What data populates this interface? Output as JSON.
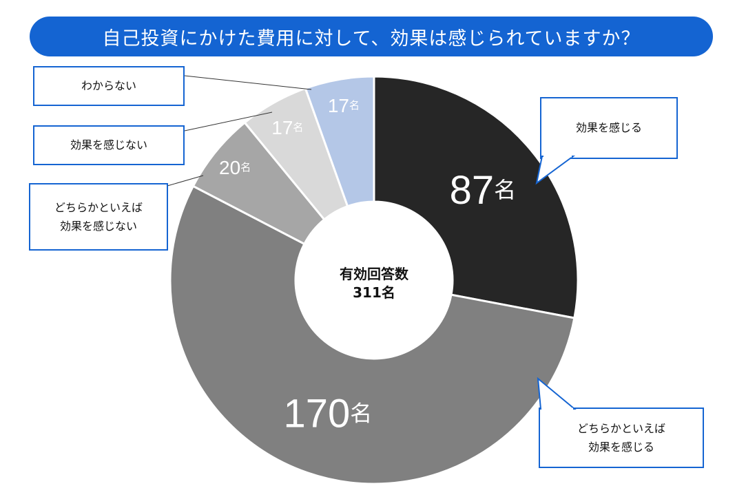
{
  "title": "自己投資にかけた費用に対して、効果は感じられていますか？",
  "center": {
    "line1": "有効回答数",
    "line2": "311名"
  },
  "colors": {
    "title_bg": "#1464d2",
    "callout_border": "#1464d2"
  },
  "chart_data": {
    "type": "pie",
    "donut": true,
    "total": 311,
    "unit": "名",
    "slices": [
      {
        "label": "効果を感じる",
        "value": 87,
        "color": "#262626",
        "text_color": "#ffffff"
      },
      {
        "label": "どちらかといえば効果を感じる",
        "value": 170,
        "color": "#808080",
        "text_color": "#ffffff"
      },
      {
        "label": "どちらかといえば効果を感じない",
        "value": 20,
        "color": "#a6a6a6",
        "text_color": "#ffffff"
      },
      {
        "label": "効果を感じない",
        "value": 17,
        "color": "#d9d9d9",
        "text_color": "#ffffff"
      },
      {
        "label": "わからない",
        "value": 17,
        "color": "#b4c7e7",
        "text_color": "#ffffff"
      }
    ]
  },
  "callouts": {
    "c0": "効果を感じる",
    "c1_line1": "どちらかといえば",
    "c1_line2": "効果を感じる",
    "c2_line1": "どちらかといえば",
    "c2_line2": "効果を感じない",
    "c3": "効果を感じない",
    "c4": "わからない"
  }
}
